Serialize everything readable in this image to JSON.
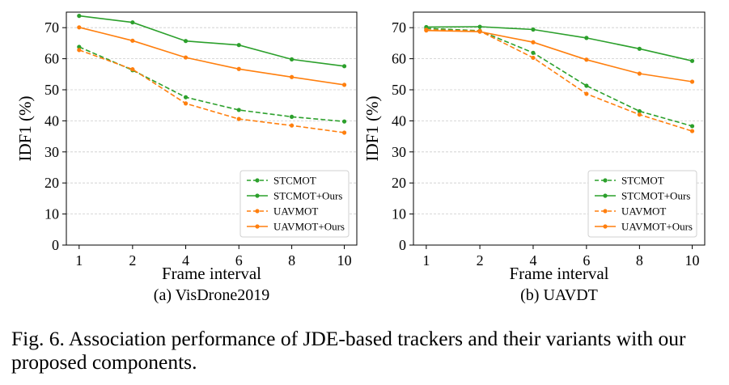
{
  "figure_caption": "Fig. 6.  Association performance of JDE-based trackers and their variants with our proposed components.",
  "colors": {
    "green": "#2ca02c",
    "orange": "#ff7f0e",
    "grid": "#cccccc"
  },
  "chart_data": [
    {
      "type": "line",
      "subcaption": "(a) VisDrone2019",
      "xlabel": "Frame interval",
      "ylabel": "IDF1 (%)",
      "categories": [
        "1",
        "2",
        "4",
        "6",
        "8",
        "10"
      ],
      "yticks": [
        0,
        10,
        20,
        30,
        40,
        50,
        60,
        70
      ],
      "ylim": [
        0,
        75
      ],
      "grid": "horizontal dashed",
      "legend_position": "lower-right",
      "series": [
        {
          "name": "STCMOT",
          "color": "#2ca02c",
          "dashed": true,
          "values": [
            63.8,
            56.3,
            47.6,
            43.5,
            41.3,
            39.8
          ]
        },
        {
          "name": "STCMOT+Ours",
          "color": "#2ca02c",
          "dashed": false,
          "values": [
            73.8,
            71.7,
            65.7,
            64.4,
            59.8,
            57.6
          ]
        },
        {
          "name": "UAVMOT",
          "color": "#ff7f0e",
          "dashed": true,
          "values": [
            62.8,
            56.6,
            45.6,
            40.6,
            38.5,
            36.2
          ]
        },
        {
          "name": "UAVMOT+Ours",
          "color": "#ff7f0e",
          "dashed": false,
          "values": [
            70.1,
            65.8,
            60.4,
            56.7,
            54.1,
            51.6
          ]
        }
      ]
    },
    {
      "type": "line",
      "subcaption": "(b) UAVDT",
      "xlabel": "Frame interval",
      "ylabel": "IDF1 (%)",
      "categories": [
        "1",
        "2",
        "4",
        "6",
        "8",
        "10"
      ],
      "yticks": [
        0,
        10,
        20,
        30,
        40,
        50,
        60,
        70
      ],
      "ylim": [
        0,
        75
      ],
      "grid": "horizontal dashed",
      "legend_position": "lower-right",
      "series": [
        {
          "name": "STCMOT",
          "color": "#2ca02c",
          "dashed": true,
          "values": [
            69.8,
            69.0,
            61.9,
            51.3,
            43.1,
            38.3
          ]
        },
        {
          "name": "STCMOT+Ours",
          "color": "#2ca02c",
          "dashed": false,
          "values": [
            70.2,
            70.3,
            69.4,
            66.7,
            63.2,
            59.3
          ]
        },
        {
          "name": "UAVMOT",
          "color": "#ff7f0e",
          "dashed": true,
          "values": [
            69.3,
            68.9,
            60.3,
            48.7,
            42.0,
            36.7
          ]
        },
        {
          "name": "UAVMOT+Ours",
          "color": "#ff7f0e",
          "dashed": false,
          "values": [
            69.1,
            68.7,
            65.3,
            59.7,
            55.2,
            52.6
          ]
        }
      ]
    }
  ]
}
